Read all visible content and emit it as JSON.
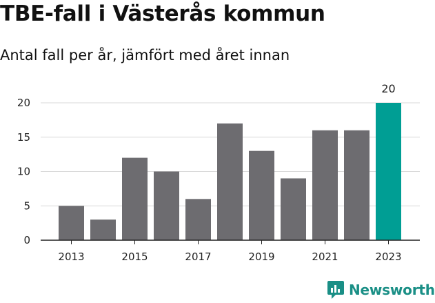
{
  "title": "TBE-fall i Västerås kommun",
  "subtitle": "Antal fall per år, jämfört med året innan",
  "brand": "Newsworthy",
  "colors": {
    "bar": "#6d6c70",
    "highlight": "#009e94",
    "grid": "#d9d9d9",
    "axis": "#222222",
    "brand": "#1a8f86"
  },
  "chart_data": {
    "type": "bar",
    "categories": [
      "2013",
      "2014",
      "2015",
      "2016",
      "2017",
      "2018",
      "2019",
      "2020",
      "2021",
      "2022",
      "2023"
    ],
    "values": [
      5,
      3,
      12,
      10,
      6,
      17,
      13,
      9,
      16,
      16,
      20
    ],
    "highlight_index": 10,
    "data_labels": [
      {
        "category": "2023",
        "text": "20"
      }
    ],
    "xtick_labels": [
      "2013",
      "2015",
      "2017",
      "2019",
      "2021",
      "2023"
    ],
    "yticks": [
      0,
      5,
      10,
      15,
      20
    ],
    "ylim": [
      0,
      20
    ],
    "grid": true,
    "legend": "none"
  }
}
